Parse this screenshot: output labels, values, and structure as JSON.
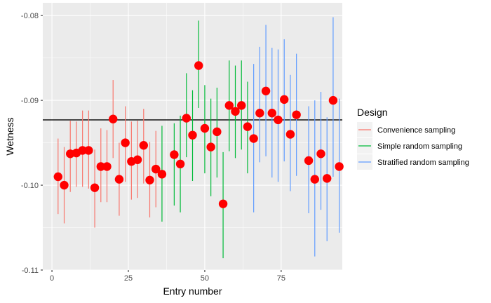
{
  "chart_data": {
    "type": "scatter",
    "title": "",
    "xlabel": "Entry number",
    "ylabel": "Wetness",
    "xlim": [
      -3,
      95
    ],
    "ylim": [
      -0.11,
      -0.0785
    ],
    "x_ticks": [
      0,
      25,
      50,
      75
    ],
    "x_tick_labels": [
      "0",
      "25",
      "50",
      "75"
    ],
    "y_ticks": [
      -0.11,
      -0.1,
      -0.09,
      -0.08
    ],
    "y_tick_labels": [
      "-0.11",
      "-0.10",
      "-0.09",
      "-0.08"
    ],
    "grid": true,
    "reference_line": -0.0923,
    "point_color": "#ff0000",
    "legend": {
      "title": "Design",
      "position": "right",
      "entries": [
        {
          "label": "Convenience sampling",
          "color": "#f8766d"
        },
        {
          "label": "Simple random sampling",
          "color": "#00ba38"
        },
        {
          "label": "Stratified random sampling",
          "color": "#619cff"
        }
      ]
    },
    "series": [
      {
        "name": "Convenience sampling",
        "color": "#f8766d",
        "points": [
          {
            "x": 2,
            "y": -0.099,
            "lo": -0.1034,
            "hi": -0.0945
          },
          {
            "x": 4,
            "y": -0.1,
            "lo": -0.1045,
            "hi": -0.0955
          },
          {
            "x": 6,
            "y": -0.0963,
            "lo": -0.1008,
            "hi": -0.0924
          },
          {
            "x": 8,
            "y": -0.0962,
            "lo": -0.1002,
            "hi": -0.0925
          },
          {
            "x": 10,
            "y": -0.0959,
            "lo": -0.1002,
            "hi": -0.0912
          },
          {
            "x": 12,
            "y": -0.0959,
            "lo": -0.1004,
            "hi": -0.0912
          },
          {
            "x": 14,
            "y": -0.1003,
            "lo": -0.105,
            "hi": -0.0958
          },
          {
            "x": 16,
            "y": -0.0978,
            "lo": -0.102,
            "hi": -0.0933
          },
          {
            "x": 18,
            "y": -0.0978,
            "lo": -0.102,
            "hi": -0.0935
          },
          {
            "x": 20,
            "y": -0.0922,
            "lo": -0.0968,
            "hi": -0.0876
          },
          {
            "x": 22,
            "y": -0.0993,
            "lo": -0.1036,
            "hi": -0.095
          },
          {
            "x": 24,
            "y": -0.095,
            "lo": -0.0996,
            "hi": -0.0907
          },
          {
            "x": 26,
            "y": -0.0972,
            "lo": -0.1017,
            "hi": -0.0925
          },
          {
            "x": 28,
            "y": -0.097,
            "lo": -0.1015,
            "hi": -0.0924
          },
          {
            "x": 30,
            "y": -0.0953,
            "lo": -0.0998,
            "hi": -0.091
          },
          {
            "x": 32,
            "y": -0.0994,
            "lo": -0.1038,
            "hi": -0.0949
          },
          {
            "x": 34,
            "y": -0.0981,
            "lo": -0.1026,
            "hi": -0.0936
          }
        ]
      },
      {
        "name": "Simple random sampling",
        "color": "#00ba38",
        "points": [
          {
            "x": 36,
            "y": -0.0987,
            "lo": -0.1043,
            "hi": -0.093
          },
          {
            "x": 40,
            "y": -0.0964,
            "lo": -0.1024,
            "hi": -0.0927
          },
          {
            "x": 42,
            "y": -0.0975,
            "lo": -0.1032,
            "hi": -0.0918
          },
          {
            "x": 44,
            "y": -0.0921,
            "lo": -0.0967,
            "hi": -0.0868
          },
          {
            "x": 46,
            "y": -0.0941,
            "lo": -0.0995,
            "hi": -0.0888
          },
          {
            "x": 48,
            "y": -0.0859,
            "lo": -0.0909,
            "hi": -0.0806
          },
          {
            "x": 50,
            "y": -0.0933,
            "lo": -0.0986,
            "hi": -0.0882
          },
          {
            "x": 52,
            "y": -0.0955,
            "lo": -0.1013,
            "hi": -0.0898
          },
          {
            "x": 54,
            "y": -0.0937,
            "lo": -0.0991,
            "hi": -0.0885
          },
          {
            "x": 56,
            "y": -0.1022,
            "lo": -0.1086,
            "hi": -0.0961
          },
          {
            "x": 58,
            "y": -0.0906,
            "lo": -0.096,
            "hi": -0.0853
          },
          {
            "x": 60,
            "y": -0.0913,
            "lo": -0.0968,
            "hi": -0.0859
          },
          {
            "x": 62,
            "y": -0.0906,
            "lo": -0.0958,
            "hi": -0.0853
          },
          {
            "x": 64,
            "y": -0.0931,
            "lo": -0.0986,
            "hi": -0.0878
          }
        ]
      },
      {
        "name": "Stratified random sampling",
        "color": "#619cff",
        "points": [
          {
            "x": 66,
            "y": -0.0945,
            "lo": -0.1032,
            "hi": -0.0857
          },
          {
            "x": 68,
            "y": -0.0915,
            "lo": -0.0973,
            "hi": -0.0837
          },
          {
            "x": 70,
            "y": -0.0889,
            "lo": -0.0966,
            "hi": -0.0811
          },
          {
            "x": 72,
            "y": -0.0915,
            "lo": -0.0991,
            "hi": -0.0838
          },
          {
            "x": 74,
            "y": -0.0923,
            "lo": -0.0996,
            "hi": -0.084
          },
          {
            "x": 76,
            "y": -0.0899,
            "lo": -0.0972,
            "hi": -0.0828
          },
          {
            "x": 78,
            "y": -0.094,
            "lo": -0.1007,
            "hi": -0.087
          },
          {
            "x": 80,
            "y": -0.0917,
            "lo": -0.0989,
            "hi": -0.0845
          },
          {
            "x": 84,
            "y": -0.0971,
            "lo": -0.1033,
            "hi": -0.0907
          },
          {
            "x": 86,
            "y": -0.0993,
            "lo": -0.1084,
            "hi": -0.09
          },
          {
            "x": 88,
            "y": -0.0963,
            "lo": -0.1029,
            "hi": -0.089
          },
          {
            "x": 90,
            "y": -0.0992,
            "lo": -0.1066,
            "hi": -0.092
          },
          {
            "x": 92,
            "y": -0.09,
            "lo": -0.099,
            "hi": -0.0802
          },
          {
            "x": 94,
            "y": -0.0978,
            "lo": -0.1056,
            "hi": -0.0898
          }
        ]
      }
    ]
  }
}
